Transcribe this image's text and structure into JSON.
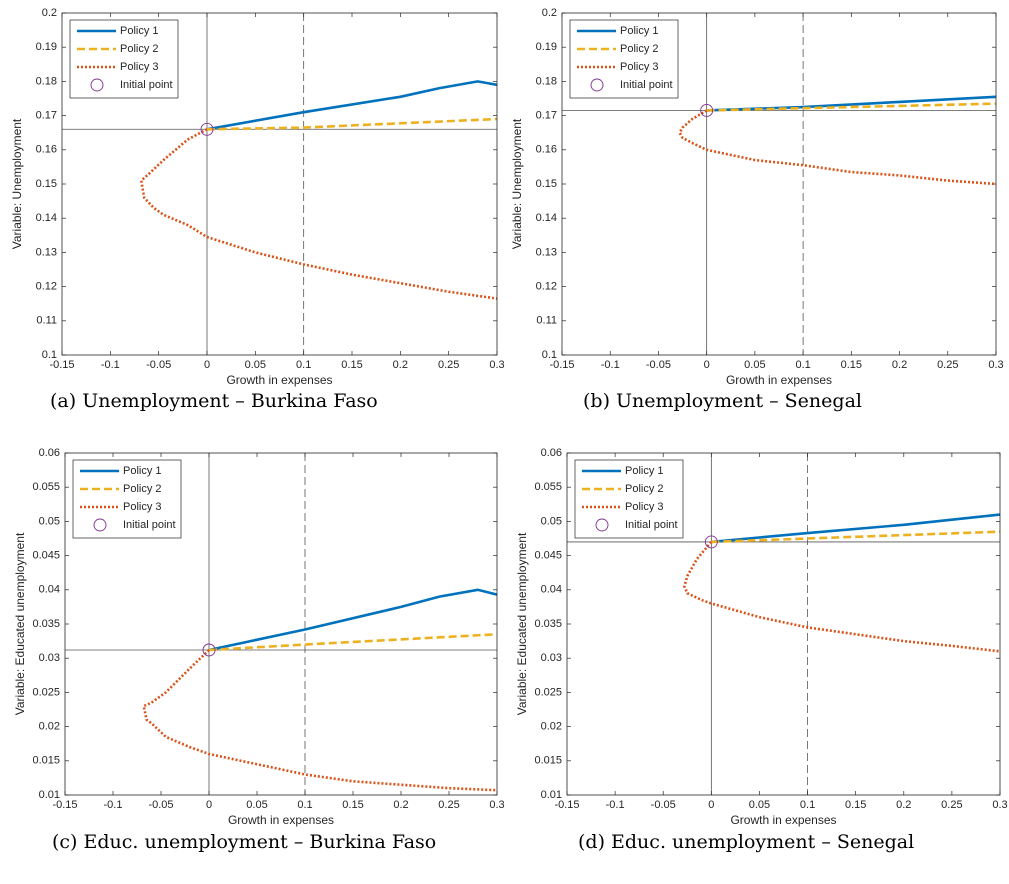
{
  "chart_data": [
    {
      "type": "line",
      "caption": "(a) Unemployment – Burkina Faso",
      "xlabel": "Growth in expenses",
      "ylabel": "Variable: Unemployment",
      "xlim": [
        -0.15,
        0.3
      ],
      "ylim": [
        0.1,
        0.2
      ],
      "xticks": [
        -0.15,
        -0.1,
        -0.05,
        0,
        0.05,
        0.1,
        0.15,
        0.2,
        0.25,
        0.3
      ],
      "yticks": [
        0.1,
        0.11,
        0.12,
        0.13,
        0.14,
        0.15,
        0.16,
        0.17,
        0.18,
        0.19,
        0.2
      ],
      "legend": "upper left",
      "reference_lines": {
        "x": [
          0,
          0.1
        ],
        "x_style": [
          "solid",
          "dashed"
        ],
        "y": [
          0.166
        ]
      },
      "series": [
        {
          "name": "Policy 1",
          "color": "#0072bd",
          "style": "solid",
          "x": [
            0,
            0.1,
            0.2,
            0.24,
            0.28,
            0.3
          ],
          "values": [
            0.166,
            0.171,
            0.1755,
            0.178,
            0.18,
            0.179
          ]
        },
        {
          "name": "Policy 2",
          "color": "#edb120",
          "style": "dashed",
          "x": [
            0,
            0.1,
            0.3
          ],
          "values": [
            0.166,
            0.1665,
            0.169
          ]
        },
        {
          "name": "Policy 3",
          "color": "#d95319",
          "style": "dotted",
          "x": [
            0,
            -0.02,
            -0.045,
            -0.06,
            -0.068,
            -0.065,
            -0.055,
            -0.045,
            -0.02,
            0,
            0.05,
            0.1,
            0.15,
            0.2,
            0.25,
            0.3
          ],
          "values": [
            0.166,
            0.163,
            0.157,
            0.153,
            0.151,
            0.146,
            0.143,
            0.141,
            0.138,
            0.1345,
            0.13,
            0.1265,
            0.1235,
            0.121,
            0.1185,
            0.1165
          ]
        },
        {
          "name": "Initial point",
          "color": "#7e2f8e",
          "style": "marker",
          "x": [
            0
          ],
          "values": [
            0.166
          ]
        }
      ]
    },
    {
      "type": "line",
      "caption": "(b) Unemployment – Senegal",
      "xlabel": "Growth in expenses",
      "ylabel": "Variable: Unemployment",
      "xlim": [
        -0.15,
        0.3
      ],
      "ylim": [
        0.1,
        0.2
      ],
      "xticks": [
        -0.15,
        -0.1,
        -0.05,
        0,
        0.05,
        0.1,
        0.15,
        0.2,
        0.25,
        0.3
      ],
      "yticks": [
        0.1,
        0.11,
        0.12,
        0.13,
        0.14,
        0.15,
        0.16,
        0.17,
        0.18,
        0.19,
        0.2
      ],
      "legend": "upper left",
      "reference_lines": {
        "x": [
          0,
          0.1
        ],
        "x_style": [
          "solid",
          "dashed"
        ],
        "y": [
          0.1715
        ]
      },
      "series": [
        {
          "name": "Policy 1",
          "color": "#0072bd",
          "style": "solid",
          "x": [
            0,
            0.1,
            0.2,
            0.3
          ],
          "values": [
            0.1715,
            0.1725,
            0.174,
            0.1755
          ]
        },
        {
          "name": "Policy 2",
          "color": "#edb120",
          "style": "dashed",
          "x": [
            0,
            0.3
          ],
          "values": [
            0.1715,
            0.1735
          ]
        },
        {
          "name": "Policy 3",
          "color": "#d95319",
          "style": "dotted",
          "x": [
            0,
            -0.015,
            -0.025,
            -0.028,
            -0.025,
            -0.015,
            0,
            0.05,
            0.1,
            0.15,
            0.2,
            0.25,
            0.3
          ],
          "values": [
            0.1715,
            0.169,
            0.1665,
            0.165,
            0.1635,
            0.162,
            0.16,
            0.157,
            0.1555,
            0.1535,
            0.1525,
            0.151,
            0.15
          ]
        },
        {
          "name": "Initial point",
          "color": "#7e2f8e",
          "style": "marker",
          "x": [
            0
          ],
          "values": [
            0.1715
          ]
        }
      ]
    },
    {
      "type": "line",
      "caption": "(c) Educ. unemployment – Burkina Faso",
      "xlabel": "Growth in expenses",
      "ylabel": "Variable: Educated unemployment",
      "xlim": [
        -0.15,
        0.3
      ],
      "ylim": [
        0.01,
        0.06
      ],
      "xticks": [
        -0.15,
        -0.1,
        -0.05,
        0,
        0.05,
        0.1,
        0.15,
        0.2,
        0.25,
        0.3
      ],
      "yticks": [
        0.01,
        0.015,
        0.02,
        0.025,
        0.03,
        0.035,
        0.04,
        0.045,
        0.05,
        0.055,
        0.06
      ],
      "legend": "upper left",
      "reference_lines": {
        "x": [
          0,
          0.1
        ],
        "x_style": [
          "solid",
          "dashed"
        ],
        "y": [
          0.0312
        ]
      },
      "series": [
        {
          "name": "Policy 1",
          "color": "#0072bd",
          "style": "solid",
          "x": [
            0,
            0.1,
            0.2,
            0.24,
            0.28,
            0.3
          ],
          "values": [
            0.0312,
            0.0342,
            0.0375,
            0.039,
            0.04,
            0.0393
          ]
        },
        {
          "name": "Policy 2",
          "color": "#edb120",
          "style": "dashed",
          "x": [
            0,
            0.1,
            0.3
          ],
          "values": [
            0.0312,
            0.032,
            0.0335
          ]
        },
        {
          "name": "Policy 3",
          "color": "#d95319",
          "style": "dotted",
          "x": [
            0,
            -0.02,
            -0.045,
            -0.06,
            -0.068,
            -0.065,
            -0.06,
            -0.045,
            -0.02,
            0,
            0.05,
            0.1,
            0.15,
            0.2,
            0.25,
            0.3
          ],
          "values": [
            0.0312,
            0.0285,
            0.025,
            0.0235,
            0.023,
            0.021,
            0.0205,
            0.0185,
            0.017,
            0.016,
            0.0145,
            0.013,
            0.012,
            0.0115,
            0.011,
            0.0107
          ]
        },
        {
          "name": "Initial point",
          "color": "#7e2f8e",
          "style": "marker",
          "x": [
            0
          ],
          "values": [
            0.0312
          ]
        }
      ]
    },
    {
      "type": "line",
      "caption": "(d) Educ. unemployment – Senegal",
      "xlabel": "Growth in expenses",
      "ylabel": "Variable: Educated unemployment",
      "xlim": [
        -0.15,
        0.3
      ],
      "ylim": [
        0.01,
        0.06
      ],
      "xticks": [
        -0.15,
        -0.1,
        -0.05,
        0,
        0.05,
        0.1,
        0.15,
        0.2,
        0.25,
        0.3
      ],
      "yticks": [
        0.01,
        0.015,
        0.02,
        0.025,
        0.03,
        0.035,
        0.04,
        0.045,
        0.05,
        0.055,
        0.06
      ],
      "legend": "upper left",
      "reference_lines": {
        "x": [
          0,
          0.1
        ],
        "x_style": [
          "solid",
          "dashed"
        ],
        "y": [
          0.047
        ]
      },
      "series": [
        {
          "name": "Policy 1",
          "color": "#0072bd",
          "style": "solid",
          "x": [
            0,
            0.1,
            0.2,
            0.3
          ],
          "values": [
            0.047,
            0.0483,
            0.0495,
            0.051
          ]
        },
        {
          "name": "Policy 2",
          "color": "#edb120",
          "style": "dashed",
          "x": [
            0,
            0.3
          ],
          "values": [
            0.047,
            0.0485
          ]
        },
        {
          "name": "Policy 3",
          "color": "#d95319",
          "style": "dotted",
          "x": [
            0,
            -0.015,
            -0.025,
            -0.028,
            -0.025,
            -0.01,
            0,
            0.05,
            0.1,
            0.15,
            0.2,
            0.25,
            0.3
          ],
          "values": [
            0.047,
            0.0445,
            0.042,
            0.0405,
            0.0395,
            0.0385,
            0.038,
            0.036,
            0.0345,
            0.0335,
            0.0325,
            0.0318,
            0.031
          ]
        },
        {
          "name": "Initial point",
          "color": "#7e2f8e",
          "style": "marker",
          "x": [
            0
          ],
          "values": [
            0.047
          ]
        }
      ]
    }
  ]
}
